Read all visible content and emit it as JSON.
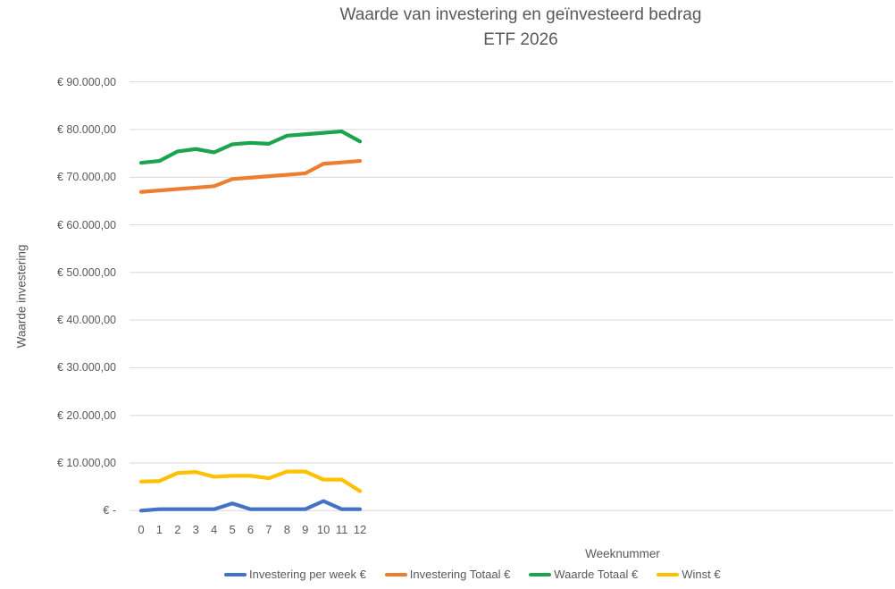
{
  "title": {
    "line1": "Waarde van investering en geïnvesteerd bedrag",
    "line2": "ETF 2026"
  },
  "y_axis": {
    "title": "Waarde investering",
    "tick_labels": [
      "€ 90.000,00",
      "€ 80.000,00",
      "€ 70.000,00",
      "€ 60.000,00",
      "€ 50.000,00",
      "€ 40.000,00",
      "€ 30.000,00",
      "€ 20.000,00",
      "€ 10.000,00",
      "€ -"
    ],
    "tick_values": [
      90000,
      80000,
      70000,
      60000,
      50000,
      40000,
      30000,
      20000,
      10000,
      0
    ]
  },
  "x_axis": {
    "title": "Weeknummer",
    "tick_labels": [
      "0",
      "1",
      "2",
      "3",
      "4",
      "5",
      "6",
      "7",
      "8",
      "9",
      "10",
      "11",
      "12"
    ]
  },
  "colors": {
    "grid": "#D9D9D9",
    "axis_text": "#595959",
    "title_text": "#595959"
  },
  "chart_data": {
    "type": "line",
    "title": "Waarde van investering en geïnvesteerd bedrag ETF 2026",
    "xlabel": "Weeknummer",
    "ylabel": "Waarde investering",
    "x": [
      0,
      1,
      2,
      3,
      4,
      5,
      6,
      7,
      8,
      9,
      10,
      11,
      12
    ],
    "ylim": [
      0,
      90000
    ],
    "y_step": 10000,
    "grid": "horizontal",
    "legend_position": "bottom",
    "series": [
      {
        "name": "Investering per week €",
        "color": "#4472C4",
        "values": [
          0,
          300,
          300,
          300,
          300,
          1500,
          300,
          300,
          300,
          300,
          2000,
          300,
          300
        ]
      },
      {
        "name": "Investering Totaal €",
        "color": "#ED7D31",
        "values": [
          66900,
          67200,
          67500,
          67800,
          68100,
          69600,
          69900,
          70200,
          70500,
          70800,
          72800,
          73100,
          73400
        ]
      },
      {
        "name": "Waarde Totaal €",
        "color": "#1CA34E",
        "values": [
          73000,
          73400,
          75400,
          75900,
          75200,
          76900,
          77200,
          77000,
          78700,
          79000,
          79300,
          79600,
          77500
        ]
      },
      {
        "name": "Winst €",
        "color": "#FFC000",
        "values": [
          6100,
          6200,
          7900,
          8100,
          7100,
          7300,
          7300,
          6800,
          8200,
          8200,
          6500,
          6500,
          4100
        ]
      }
    ]
  }
}
